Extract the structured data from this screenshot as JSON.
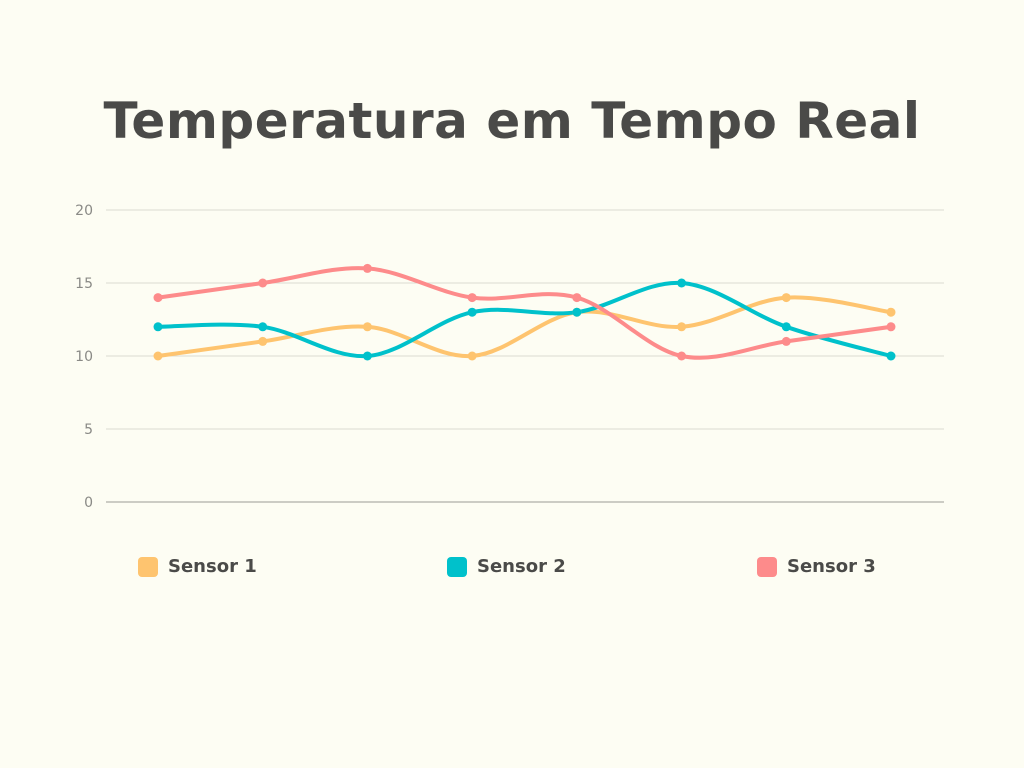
{
  "chart_data": {
    "type": "line",
    "title": "Temperatura em Tempo Real",
    "xlabel": "",
    "ylabel": "",
    "ylim": [
      0,
      20
    ],
    "y_ticks": [
      0,
      5,
      10,
      15,
      20
    ],
    "grid": true,
    "smooth": true,
    "legend_position": "bottom",
    "x": [
      1,
      2,
      3,
      4,
      5,
      6,
      7,
      8
    ],
    "series": [
      {
        "name": "Sensor 1",
        "color": "#fec46f",
        "values": [
          10,
          11,
          12,
          10,
          13,
          12,
          14,
          13
        ]
      },
      {
        "name": "Sensor 2",
        "color": "#00c1cb",
        "values": [
          12,
          12,
          10,
          13,
          13,
          15,
          12,
          10
        ]
      },
      {
        "name": "Sensor 3",
        "color": "#fd8b8b",
        "values": [
          14,
          15,
          16,
          14,
          14,
          10,
          11,
          12
        ]
      }
    ]
  }
}
